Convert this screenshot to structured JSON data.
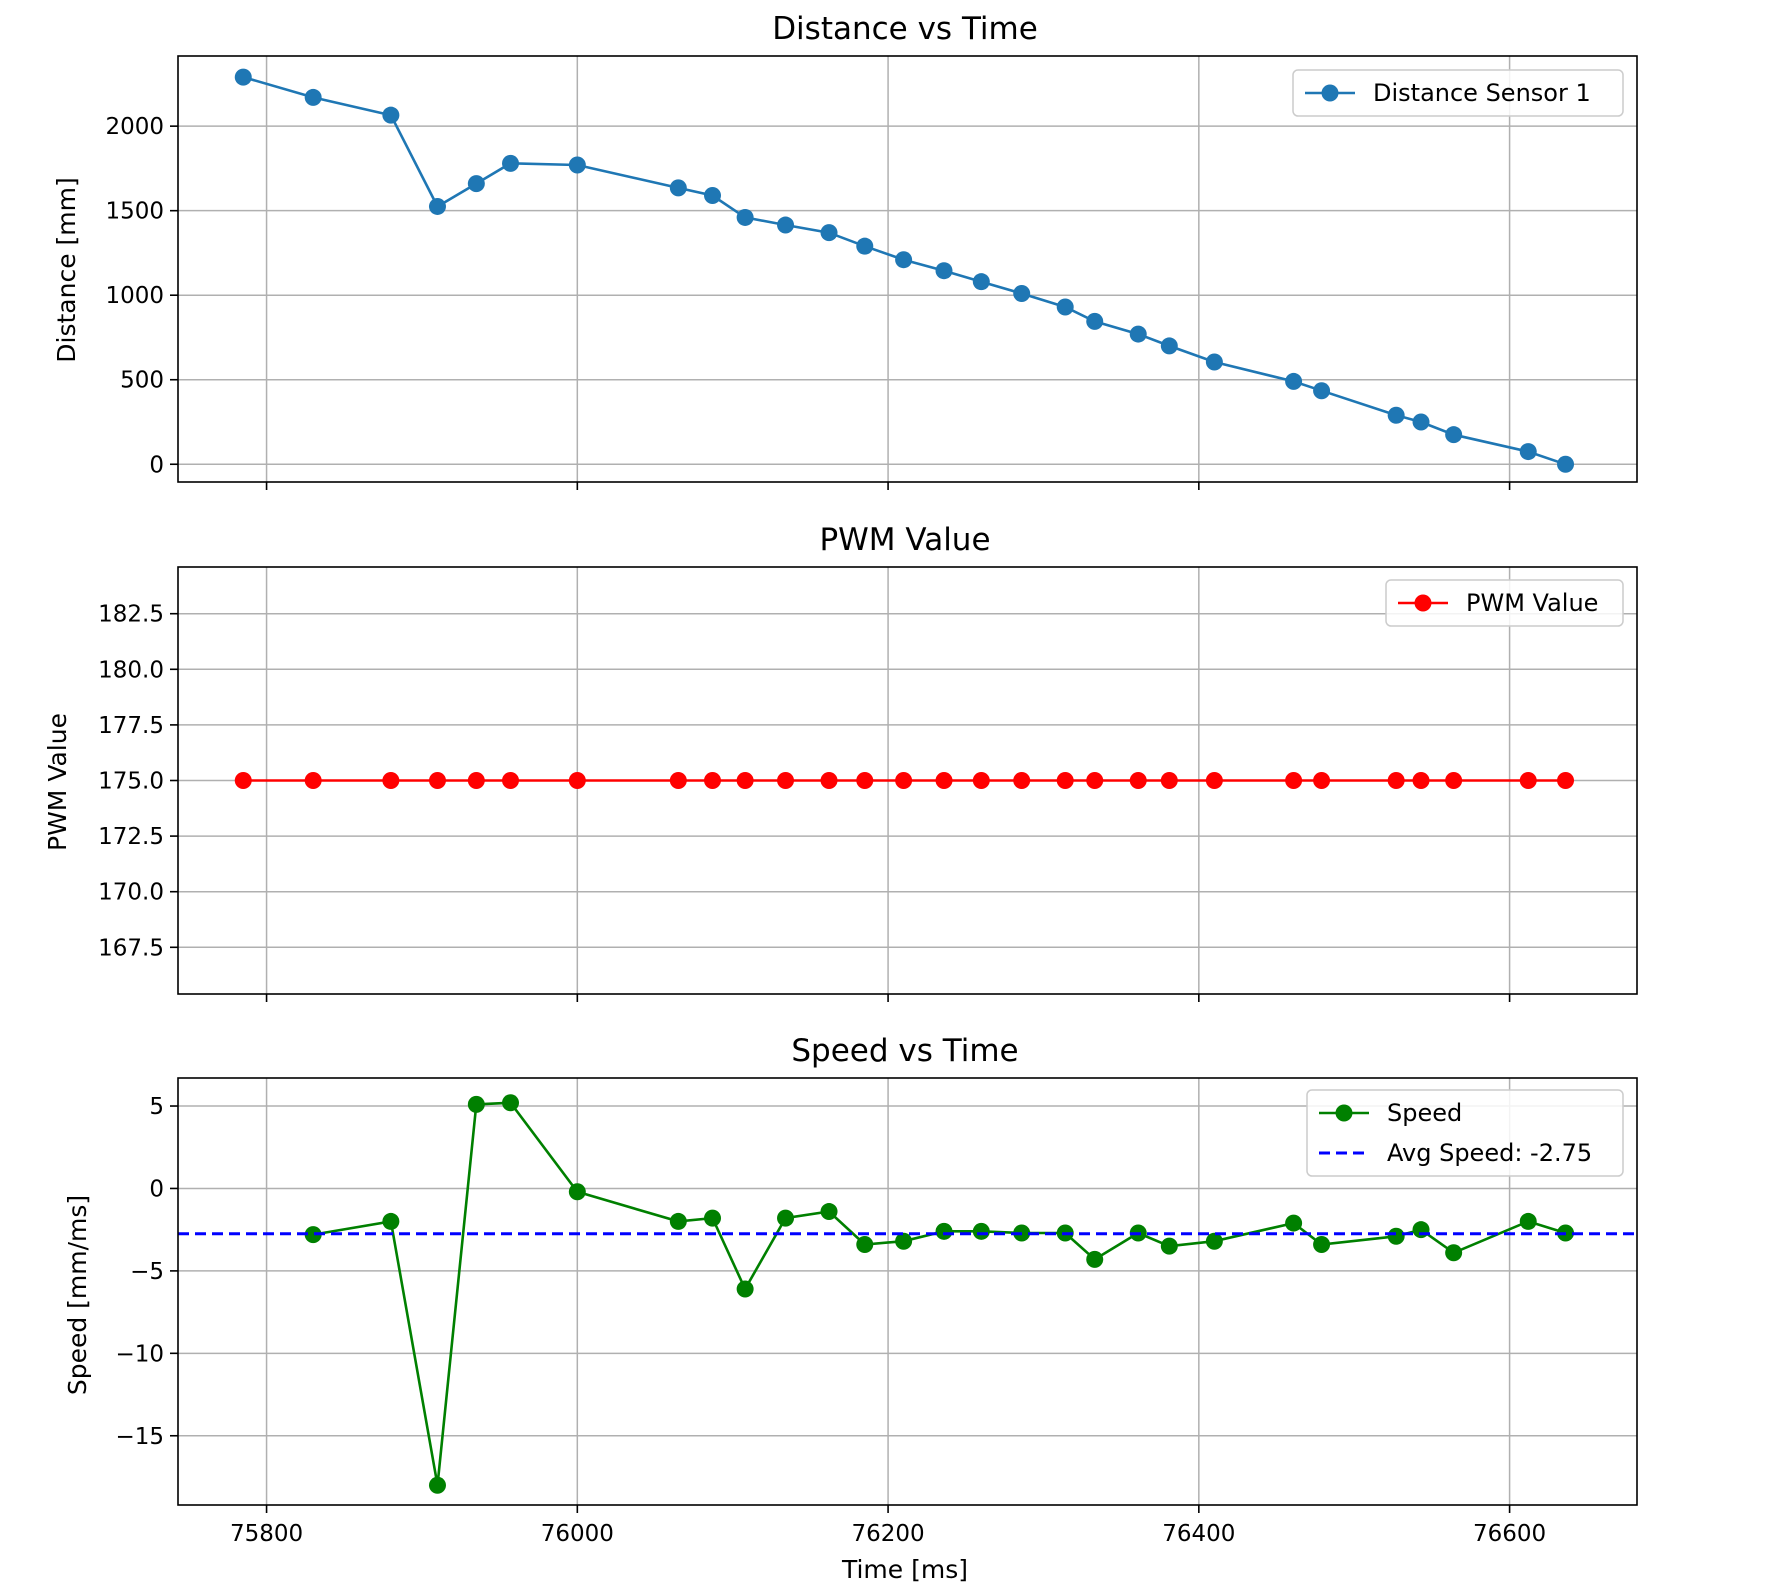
{
  "chart_data": [
    {
      "type": "line",
      "title": "Distance vs Time",
      "xlabel": "",
      "ylabel": "Distance [mm]",
      "xlim": [
        75743,
        76682
      ],
      "ylim": [
        -105,
        2415
      ],
      "xticks": [
        75800,
        76000,
        76200,
        76400,
        76600
      ],
      "show_x_tick_labels": false,
      "yticks": [
        0,
        500,
        1000,
        1500,
        2000
      ],
      "ytick_labels": [
        "0",
        "500",
        "1000",
        "1500",
        "2000"
      ],
      "grid": true,
      "legend": "top-right",
      "series": [
        {
          "name": "Distance Sensor 1",
          "color": "#1f77b4",
          "marker": "circle",
          "linestyle": "solid",
          "x": [
            75785,
            75830,
            75880,
            75910,
            75935,
            75957,
            76000,
            76065,
            76087,
            76108,
            76134,
            76162,
            76185,
            76210,
            76236,
            76260,
            76286,
            76314,
            76333,
            76361,
            76381,
            76410,
            76461,
            76479,
            76527,
            76543,
            76564,
            76612,
            76636
          ],
          "y": [
            2290,
            2170,
            2065,
            1525,
            1660,
            1780,
            1770,
            1635,
            1590,
            1460,
            1415,
            1370,
            1290,
            1210,
            1145,
            1080,
            1010,
            930,
            845,
            770,
            700,
            605,
            490,
            435,
            290,
            250,
            175,
            75,
            0
          ]
        }
      ]
    },
    {
      "type": "line",
      "title": "PWM Value",
      "xlabel": "",
      "ylabel": "PWM Value",
      "xlim": [
        75743,
        76682
      ],
      "ylim": [
        165.4,
        184.6
      ],
      "xticks": [
        75800,
        76000,
        76200,
        76400,
        76600
      ],
      "show_x_tick_labels": false,
      "yticks": [
        167.5,
        170.0,
        172.5,
        175.0,
        177.5,
        180.0,
        182.5
      ],
      "ytick_labels": [
        "167.5",
        "170.0",
        "172.5",
        "175.0",
        "177.5",
        "180.0",
        "182.5"
      ],
      "grid": true,
      "legend": "top-right",
      "series": [
        {
          "name": "PWM Value",
          "color": "#ff0000",
          "marker": "circle",
          "linestyle": "solid",
          "x": [
            75785,
            75830,
            75880,
            75910,
            75935,
            75957,
            76000,
            76065,
            76087,
            76108,
            76134,
            76162,
            76185,
            76210,
            76236,
            76260,
            76286,
            76314,
            76333,
            76361,
            76381,
            76410,
            76461,
            76479,
            76527,
            76543,
            76564,
            76612,
            76636
          ],
          "y": [
            175,
            175,
            175,
            175,
            175,
            175,
            175,
            175,
            175,
            175,
            175,
            175,
            175,
            175,
            175,
            175,
            175,
            175,
            175,
            175,
            175,
            175,
            175,
            175,
            175,
            175,
            175,
            175,
            175
          ]
        }
      ]
    },
    {
      "type": "line",
      "title": "Speed vs Time",
      "xlabel": "Time [ms]",
      "ylabel": "Speed [mm/ms]",
      "xlim": [
        75743,
        76682
      ],
      "ylim": [
        -19.2,
        6.7
      ],
      "xticks": [
        75800,
        76000,
        76200,
        76400,
        76600
      ],
      "xtick_labels": [
        "75800",
        "76000",
        "76200",
        "76400",
        "76600"
      ],
      "show_x_tick_labels": true,
      "yticks": [
        -15,
        -10,
        -5,
        0,
        5
      ],
      "ytick_labels": [
        "−15",
        "−10",
        "−5",
        "0",
        "5"
      ],
      "grid": true,
      "legend": "top-right",
      "series": [
        {
          "name": "Speed",
          "color": "#008000",
          "marker": "circle",
          "linestyle": "solid",
          "x": [
            75830,
            75880,
            75910,
            75935,
            75957,
            76000,
            76065,
            76087,
            76108,
            76134,
            76162,
            76185,
            76210,
            76236,
            76260,
            76286,
            76314,
            76333,
            76361,
            76381,
            76410,
            76461,
            76479,
            76527,
            76543,
            76564,
            76612,
            76636
          ],
          "y": [
            -2.8,
            -2.0,
            -18.0,
            5.1,
            5.2,
            -0.2,
            -2.0,
            -1.8,
            -6.1,
            -1.8,
            -1.4,
            -3.4,
            -3.2,
            -2.6,
            -2.6,
            -2.7,
            -2.7,
            -4.3,
            -2.7,
            -3.5,
            -3.2,
            -2.1,
            -3.4,
            -2.9,
            -2.5,
            -3.9,
            -2.0,
            -2.7
          ]
        },
        {
          "name": "Avg Speed: -2.75",
          "color": "#0000ff",
          "marker": "none",
          "linestyle": "dashed",
          "hline": -2.75
        }
      ]
    }
  ]
}
